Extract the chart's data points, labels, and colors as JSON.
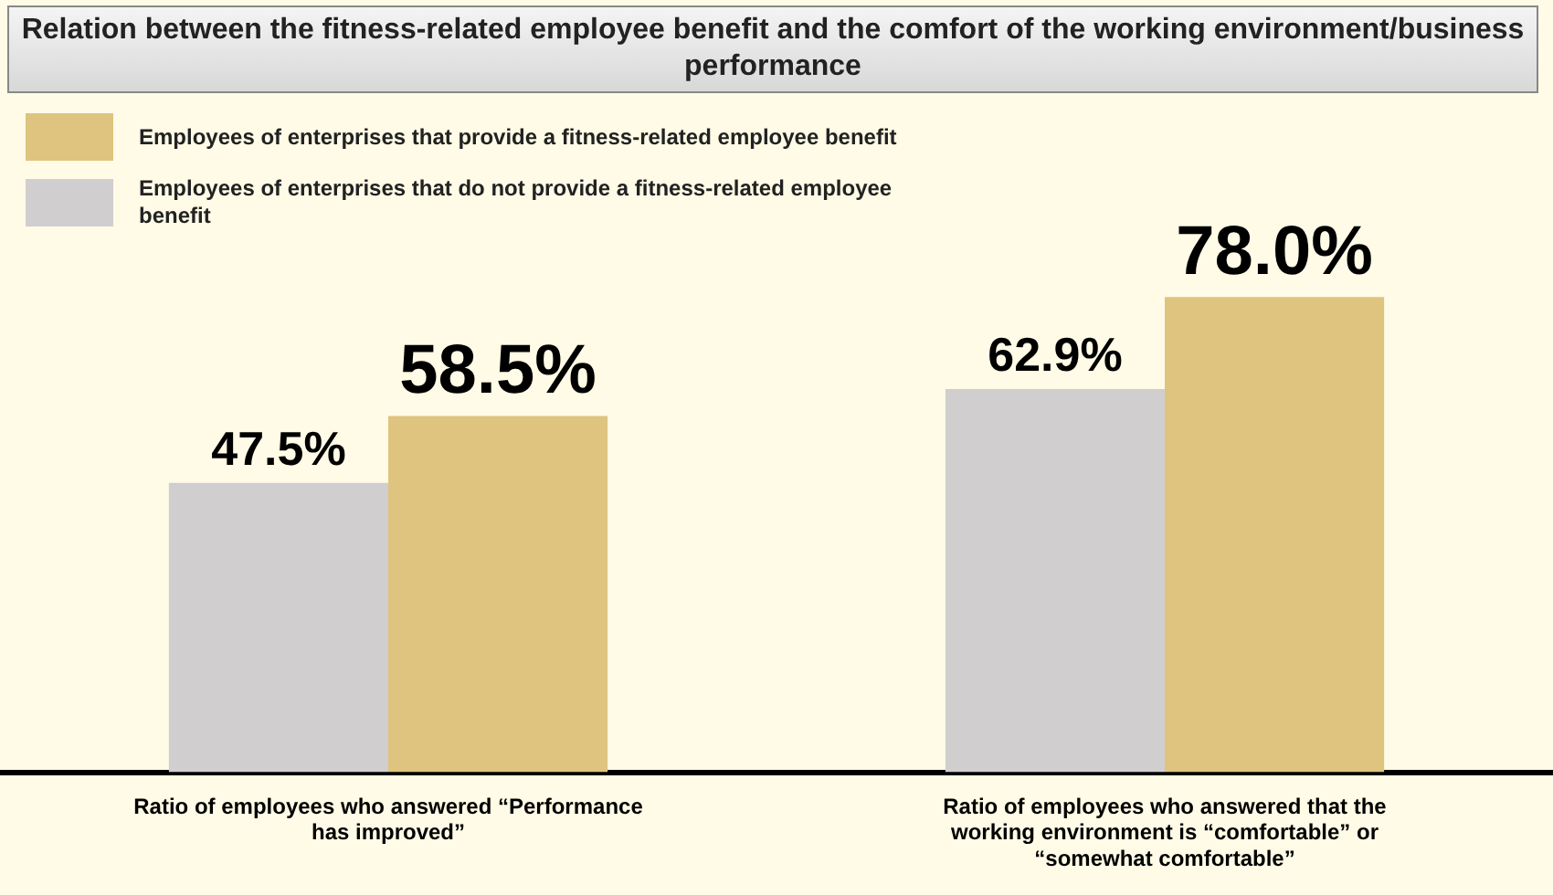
{
  "chart_data": {
    "type": "bar",
    "title": "Relation between the fitness-related employee benefit and the comfort of the working environment/business performance",
    "categories": [
      "Ratio of employees who answered “Performance has improved”",
      "Ratio of employees who answered that the working environment is “comfortable” or “somewhat comfortable”"
    ],
    "series": [
      {
        "name": "Employees of enterprises that do not provide a fitness-related employee benefit",
        "color": "#d0cece",
        "values": [
          47.5,
          62.9
        ],
        "value_labels": [
          "47.5%",
          "62.9%"
        ]
      },
      {
        "name": "Employees of enterprises that provide a fitness-related employee benefit",
        "color": "#dfc47f",
        "values": [
          58.5,
          78.0
        ],
        "value_labels": [
          "58.5%",
          "78.0%"
        ]
      }
    ],
    "legend": "top left",
    "grid": false
  }
}
